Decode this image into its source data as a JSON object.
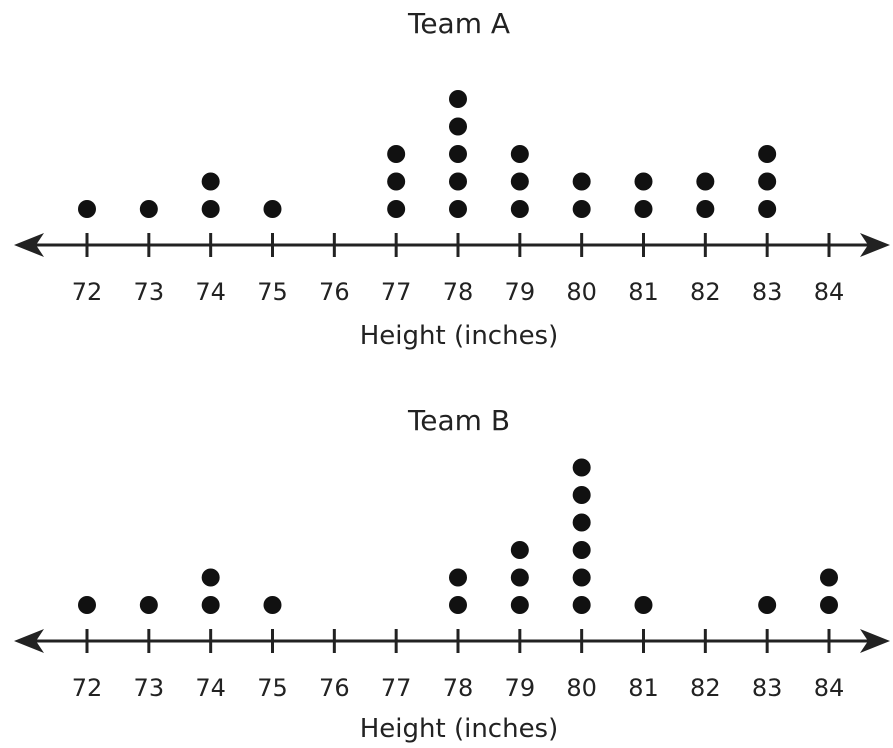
{
  "chart_data": [
    {
      "type": "scatter",
      "subtype": "dot-plot",
      "title": "Team A",
      "xlabel": "Height (inches)",
      "xlim": [
        72,
        84
      ],
      "ticks": [
        72,
        73,
        74,
        75,
        76,
        77,
        78,
        79,
        80,
        81,
        82,
        83,
        84
      ],
      "tick_labels": [
        "72",
        "73",
        "74",
        "75",
        "76",
        "77",
        "78",
        "79",
        "80",
        "81",
        "82",
        "83",
        "84"
      ],
      "x": [
        72,
        73,
        74,
        75,
        76,
        77,
        78,
        79,
        80,
        81,
        82,
        83,
        84
      ],
      "counts": [
        1,
        1,
        2,
        1,
        0,
        3,
        5,
        3,
        2,
        2,
        2,
        3,
        0
      ],
      "dot_color": "#111111",
      "axis_color": "#222222",
      "arrows": "both"
    },
    {
      "type": "scatter",
      "subtype": "dot-plot",
      "title": "Team B",
      "xlabel": "Height (inches)",
      "xlim": [
        72,
        84
      ],
      "ticks": [
        72,
        73,
        74,
        75,
        76,
        77,
        78,
        79,
        80,
        81,
        82,
        83,
        84
      ],
      "tick_labels": [
        "72",
        "73",
        "74",
        "75",
        "76",
        "77",
        "78",
        "79",
        "80",
        "81",
        "82",
        "83",
        "84"
      ],
      "x": [
        72,
        73,
        74,
        75,
        76,
        77,
        78,
        79,
        80,
        81,
        82,
        83,
        84
      ],
      "counts": [
        1,
        1,
        2,
        1,
        0,
        0,
        2,
        3,
        6,
        1,
        0,
        1,
        2
      ],
      "dot_color": "#111111",
      "axis_color": "#222222",
      "arrows": "both"
    }
  ]
}
